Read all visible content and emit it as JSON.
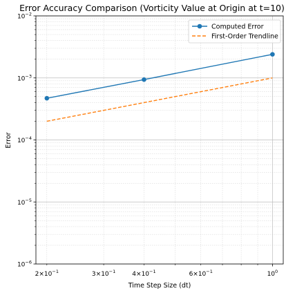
{
  "chart_data": {
    "type": "line",
    "title": "Error Accuracy Comparison (Vorticity Value at Origin at t=10)",
    "xlabel": "Time Step Size (dt)",
    "ylabel": "Error",
    "xscale": "log",
    "yscale": "log",
    "xlim": [
      0.185,
      1.08
    ],
    "ylim": [
      1e-06,
      0.01
    ],
    "grid": true,
    "legend_position": "top-right",
    "x_ticks": [
      {
        "value": 0.2,
        "base": "2×10",
        "exp": "−1"
      },
      {
        "value": 0.3,
        "base": "3×10",
        "exp": "−1"
      },
      {
        "value": 0.4,
        "base": "4×10",
        "exp": "−1"
      },
      {
        "value": 0.6,
        "base": "6×10",
        "exp": "−1"
      },
      {
        "value": 1.0,
        "base": "10",
        "exp": "0"
      }
    ],
    "y_ticks": [
      {
        "value": 1e-06,
        "base": "10",
        "exp": "−6"
      },
      {
        "value": 1e-05,
        "base": "10",
        "exp": "−5"
      },
      {
        "value": 0.0001,
        "base": "10",
        "exp": "−4"
      },
      {
        "value": 0.001,
        "base": "10",
        "exp": "−3"
      },
      {
        "value": 0.01,
        "base": "10",
        "exp": "−2"
      }
    ],
    "series": [
      {
        "name": "Computed Error",
        "color": "#1f77b4",
        "style": "solid",
        "marker": "circle",
        "x": [
          0.2,
          0.4,
          1.0
        ],
        "values": [
          0.00047,
          0.00094,
          0.0024
        ]
      },
      {
        "name": "First-Order Trendline",
        "color": "#ff7f0e",
        "style": "dashed",
        "marker": "none",
        "x": [
          0.2,
          1.0
        ],
        "values": [
          0.0002,
          0.001
        ]
      }
    ]
  }
}
